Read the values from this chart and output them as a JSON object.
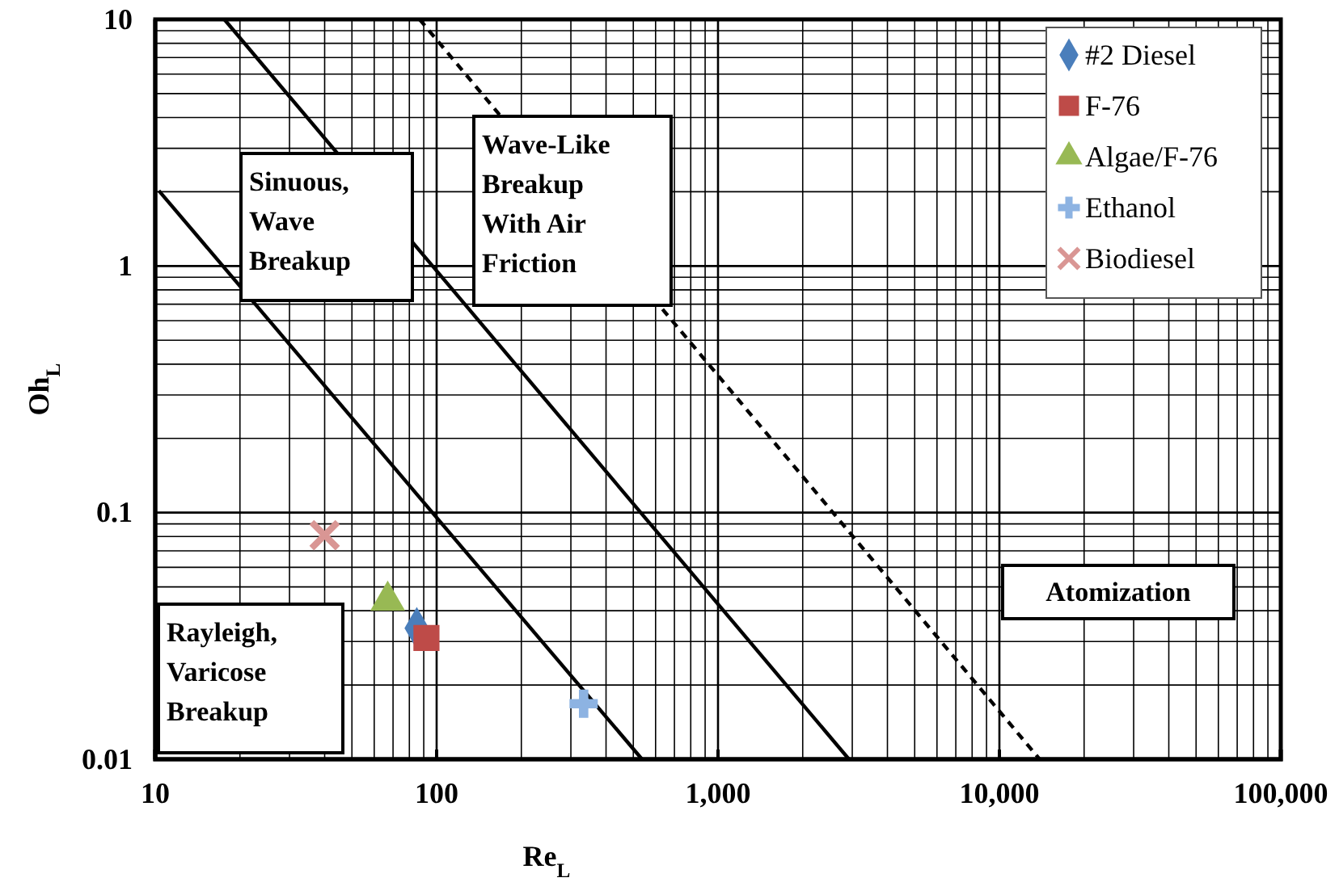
{
  "chart_data": {
    "type": "scatter",
    "xlabel": "Re$_{L}$",
    "ylabel": "Oh$_{L}$",
    "log": "xy",
    "grid": true,
    "legend": "top right",
    "xlim": [
      10,
      100000
    ],
    "ylim": [
      0.01,
      10
    ],
    "xticks": [
      10,
      100,
      {
        "value": 1000,
        "label": "1,000"
      },
      {
        "value": 10000,
        "label": "10,000"
      },
      {
        "value": 100000,
        "label": "100,000"
      }
    ],
    "yticks": [
      0.01,
      0.1,
      1,
      10
    ],
    "annotations": [
      "Sinuous,\nWave\nBreakup",
      "Wave-Like\nBreakup\nWith Air\nFriction",
      "Rayleigh,\nVaricose\nBreakup",
      "Atomization"
    ],
    "series": [
      {
        "type": "line",
        "color": "#000000",
        "line_style": "solid",
        "marker": "none",
        "x": [
          10.3,
          537
        ],
        "values": [
          2.02,
          0.01
        ]
      },
      {
        "type": "line",
        "color": "#000000",
        "line_style": "solid",
        "marker": "none",
        "x": [
          17.6,
          2920
        ],
        "values": [
          10,
          0.01
        ]
      },
      {
        "type": "line",
        "color": "#000000",
        "line_style": "dashed",
        "marker": "none",
        "x": [
          87,
          13900
        ],
        "values": [
          10,
          0.01
        ]
      },
      {
        "name": "#2 Diesel",
        "color": "#4a7ebb",
        "marker": "diamond",
        "x": [
          85
        ],
        "values": [
          0.034
        ]
      },
      {
        "name": "F-76",
        "color": "#be4b48",
        "marker": "square",
        "x": [
          92
        ],
        "values": [
          0.031
        ]
      },
      {
        "name": "Algae/F-76",
        "color": "#98b954",
        "marker": "triangle",
        "x": [
          67
        ],
        "values": [
          0.044
        ]
      },
      {
        "name": "Ethanol",
        "color": "#8db3e2",
        "marker": "cross",
        "x": [
          333
        ],
        "values": [
          0.0168
        ]
      },
      {
        "name": "Biodiesel",
        "color": "#d99694",
        "marker": "x",
        "x": [
          40
        ],
        "values": [
          0.081
        ]
      }
    ]
  }
}
